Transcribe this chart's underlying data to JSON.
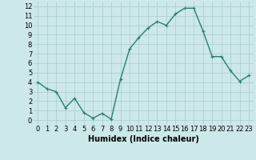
{
  "x": [
    0,
    1,
    2,
    3,
    4,
    5,
    6,
    7,
    8,
    9,
    10,
    11,
    12,
    13,
    14,
    15,
    16,
    17,
    18,
    19,
    20,
    21,
    22,
    23
  ],
  "y": [
    4.0,
    3.3,
    3.0,
    1.3,
    2.3,
    0.8,
    0.2,
    0.7,
    0.1,
    4.3,
    7.5,
    8.7,
    9.7,
    10.4,
    10.0,
    11.2,
    11.8,
    11.8,
    9.4,
    6.7,
    6.7,
    5.2,
    4.1,
    4.7
  ],
  "xlabel": "Humidex (Indice chaleur)",
  "xlim": [
    -0.5,
    23.5
  ],
  "ylim": [
    -0.5,
    12.5
  ],
  "xticks": [
    0,
    1,
    2,
    3,
    4,
    5,
    6,
    7,
    8,
    9,
    10,
    11,
    12,
    13,
    14,
    15,
    16,
    17,
    18,
    19,
    20,
    21,
    22,
    23
  ],
  "yticks": [
    0,
    1,
    2,
    3,
    4,
    5,
    6,
    7,
    8,
    9,
    10,
    11,
    12
  ],
  "line_color": "#2d7d6e",
  "marker": "+",
  "bg_color": "#cce8e8",
  "grid_color": "#aacccc",
  "xlabel_fontsize": 7,
  "tick_fontsize": 6,
  "linewidth": 1.0,
  "markersize": 3,
  "markeredgewidth": 0.8
}
